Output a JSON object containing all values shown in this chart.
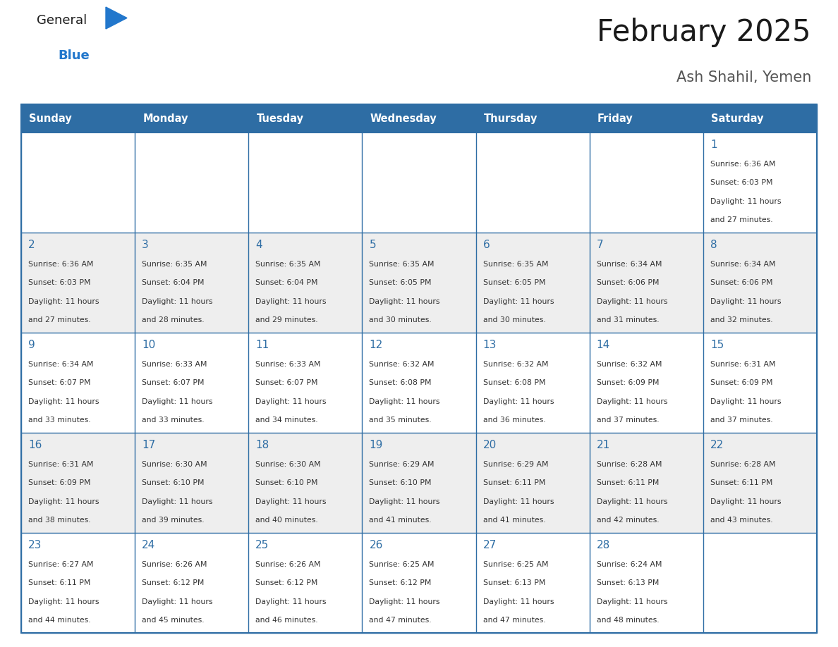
{
  "title": "February 2025",
  "subtitle": "Ash Shahil, Yemen",
  "days_of_week": [
    "Sunday",
    "Monday",
    "Tuesday",
    "Wednesday",
    "Thursday",
    "Friday",
    "Saturday"
  ],
  "header_bg": "#2e6da4",
  "header_text": "#ffffff",
  "cell_bg_odd": "#ffffff",
  "cell_bg_even": "#eeeeee",
  "cell_border": "#2e6da4",
  "title_color": "#1a1a1a",
  "subtitle_color": "#555555",
  "day_number_color": "#2e6da4",
  "text_color": "#333333",
  "logo_general_color": "#1a1a1a",
  "logo_blue_color": "#2277cc",
  "calendar_data": [
    {
      "day": 1,
      "col": 6,
      "row": 0,
      "sunrise": "6:36 AM",
      "sunset": "6:03 PM",
      "daylight_hours": 11,
      "daylight_minutes": 27
    },
    {
      "day": 2,
      "col": 0,
      "row": 1,
      "sunrise": "6:36 AM",
      "sunset": "6:03 PM",
      "daylight_hours": 11,
      "daylight_minutes": 27
    },
    {
      "day": 3,
      "col": 1,
      "row": 1,
      "sunrise": "6:35 AM",
      "sunset": "6:04 PM",
      "daylight_hours": 11,
      "daylight_minutes": 28
    },
    {
      "day": 4,
      "col": 2,
      "row": 1,
      "sunrise": "6:35 AM",
      "sunset": "6:04 PM",
      "daylight_hours": 11,
      "daylight_minutes": 29
    },
    {
      "day": 5,
      "col": 3,
      "row": 1,
      "sunrise": "6:35 AM",
      "sunset": "6:05 PM",
      "daylight_hours": 11,
      "daylight_minutes": 30
    },
    {
      "day": 6,
      "col": 4,
      "row": 1,
      "sunrise": "6:35 AM",
      "sunset": "6:05 PM",
      "daylight_hours": 11,
      "daylight_minutes": 30
    },
    {
      "day": 7,
      "col": 5,
      "row": 1,
      "sunrise": "6:34 AM",
      "sunset": "6:06 PM",
      "daylight_hours": 11,
      "daylight_minutes": 31
    },
    {
      "day": 8,
      "col": 6,
      "row": 1,
      "sunrise": "6:34 AM",
      "sunset": "6:06 PM",
      "daylight_hours": 11,
      "daylight_minutes": 32
    },
    {
      "day": 9,
      "col": 0,
      "row": 2,
      "sunrise": "6:34 AM",
      "sunset": "6:07 PM",
      "daylight_hours": 11,
      "daylight_minutes": 33
    },
    {
      "day": 10,
      "col": 1,
      "row": 2,
      "sunrise": "6:33 AM",
      "sunset": "6:07 PM",
      "daylight_hours": 11,
      "daylight_minutes": 33
    },
    {
      "day": 11,
      "col": 2,
      "row": 2,
      "sunrise": "6:33 AM",
      "sunset": "6:07 PM",
      "daylight_hours": 11,
      "daylight_minutes": 34
    },
    {
      "day": 12,
      "col": 3,
      "row": 2,
      "sunrise": "6:32 AM",
      "sunset": "6:08 PM",
      "daylight_hours": 11,
      "daylight_minutes": 35
    },
    {
      "day": 13,
      "col": 4,
      "row": 2,
      "sunrise": "6:32 AM",
      "sunset": "6:08 PM",
      "daylight_hours": 11,
      "daylight_minutes": 36
    },
    {
      "day": 14,
      "col": 5,
      "row": 2,
      "sunrise": "6:32 AM",
      "sunset": "6:09 PM",
      "daylight_hours": 11,
      "daylight_minutes": 37
    },
    {
      "day": 15,
      "col": 6,
      "row": 2,
      "sunrise": "6:31 AM",
      "sunset": "6:09 PM",
      "daylight_hours": 11,
      "daylight_minutes": 37
    },
    {
      "day": 16,
      "col": 0,
      "row": 3,
      "sunrise": "6:31 AM",
      "sunset": "6:09 PM",
      "daylight_hours": 11,
      "daylight_minutes": 38
    },
    {
      "day": 17,
      "col": 1,
      "row": 3,
      "sunrise": "6:30 AM",
      "sunset": "6:10 PM",
      "daylight_hours": 11,
      "daylight_minutes": 39
    },
    {
      "day": 18,
      "col": 2,
      "row": 3,
      "sunrise": "6:30 AM",
      "sunset": "6:10 PM",
      "daylight_hours": 11,
      "daylight_minutes": 40
    },
    {
      "day": 19,
      "col": 3,
      "row": 3,
      "sunrise": "6:29 AM",
      "sunset": "6:10 PM",
      "daylight_hours": 11,
      "daylight_minutes": 41
    },
    {
      "day": 20,
      "col": 4,
      "row": 3,
      "sunrise": "6:29 AM",
      "sunset": "6:11 PM",
      "daylight_hours": 11,
      "daylight_minutes": 41
    },
    {
      "day": 21,
      "col": 5,
      "row": 3,
      "sunrise": "6:28 AM",
      "sunset": "6:11 PM",
      "daylight_hours": 11,
      "daylight_minutes": 42
    },
    {
      "day": 22,
      "col": 6,
      "row": 3,
      "sunrise": "6:28 AM",
      "sunset": "6:11 PM",
      "daylight_hours": 11,
      "daylight_minutes": 43
    },
    {
      "day": 23,
      "col": 0,
      "row": 4,
      "sunrise": "6:27 AM",
      "sunset": "6:11 PM",
      "daylight_hours": 11,
      "daylight_minutes": 44
    },
    {
      "day": 24,
      "col": 1,
      "row": 4,
      "sunrise": "6:26 AM",
      "sunset": "6:12 PM",
      "daylight_hours": 11,
      "daylight_minutes": 45
    },
    {
      "day": 25,
      "col": 2,
      "row": 4,
      "sunrise": "6:26 AM",
      "sunset": "6:12 PM",
      "daylight_hours": 11,
      "daylight_minutes": 46
    },
    {
      "day": 26,
      "col": 3,
      "row": 4,
      "sunrise": "6:25 AM",
      "sunset": "6:12 PM",
      "daylight_hours": 11,
      "daylight_minutes": 47
    },
    {
      "day": 27,
      "col": 4,
      "row": 4,
      "sunrise": "6:25 AM",
      "sunset": "6:13 PM",
      "daylight_hours": 11,
      "daylight_minutes": 47
    },
    {
      "day": 28,
      "col": 5,
      "row": 4,
      "sunrise": "6:24 AM",
      "sunset": "6:13 PM",
      "daylight_hours": 11,
      "daylight_minutes": 48
    }
  ]
}
